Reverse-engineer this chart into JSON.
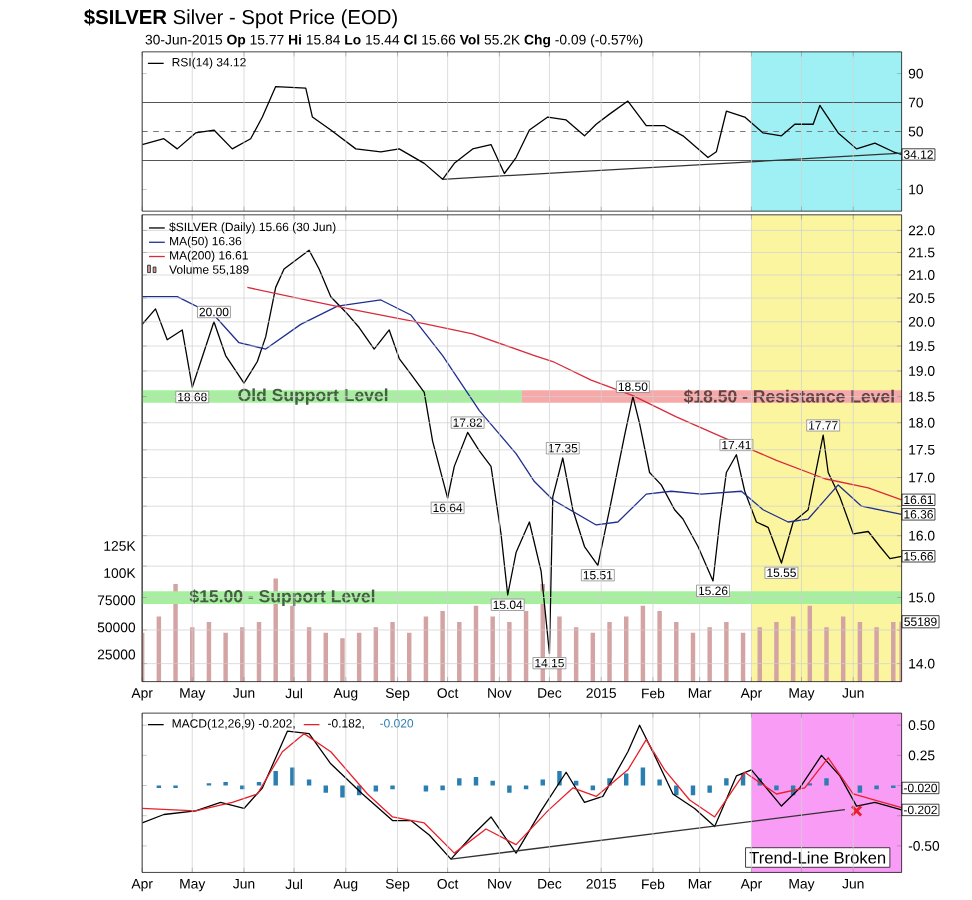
{
  "chart_data": [
    {
      "type": "line",
      "title": "**$SILVER** Silver - Spot Price (EOD)",
      "subtitle": "30-Jun-2015   **Op** 15.77 **Hi** 15.84 **Lo** 15.44 **Cl** 15.66 **Vol** 55.2K **Chg** -0.09 (-0.57%)",
      "xlim": [
        "2014-04-01",
        "2015-06-30"
      ],
      "ylim": [
        -5,
        105
      ],
      "xticks": [
        {
          "value": "2014-04-01",
          "label": null
        },
        {
          "value": "2014-05-01",
          "label": null
        },
        {
          "value": "2014-06-01",
          "label": null
        },
        {
          "value": "2014-07-01",
          "label": null
        },
        {
          "value": "2014-08-01",
          "label": null
        },
        {
          "value": "2014-09-01",
          "label": null
        },
        {
          "value": "2014-10-01",
          "label": null
        },
        {
          "value": "2014-11-01",
          "label": null
        },
        {
          "value": "2014-12-01",
          "label": null
        },
        {
          "value": "2015-01-01",
          "label": null
        },
        {
          "value": "2015-02-01",
          "label": null
        },
        {
          "value": "2015-03-01",
          "label": null
        },
        {
          "value": "2015-04-01",
          "label": null
        },
        {
          "value": "2015-05-01",
          "label": null
        },
        {
          "value": "2015-06-01",
          "label": null
        }
      ],
      "yticks": [
        10,
        {
          "value": 30,
          "label": null
        },
        50,
        70,
        90
      ],
      "tick_labels": "y",
      "grid": "x",
      "legend": "top left",
      "marker": "none",
      "ref_lines": [
        {
          "axis": "y",
          "value": 70,
          "color": "#555555",
          "line_style": "solid"
        },
        {
          "axis": "y",
          "value": 50,
          "color": "#777777",
          "line_style": "dashed"
        },
        {
          "axis": "y",
          "value": 30,
          "color": "#555555",
          "line_style": "solid"
        }
      ],
      "bands": [
        {
          "axis": "x",
          "from": "2015-04-01",
          "to": "2015-06-30",
          "color": "#9ff0f5"
        }
      ],
      "annotations": [
        {
          "text": "34.12",
          "x": "2015-06-30",
          "y": 34.12
        }
      ],
      "series": [
        {
          "name": "RSI(14) 34.12",
          "color": "#000000",
          "x": [
            "2014-04-01",
            "2014-04-14",
            "2014-04-22",
            "2014-05-03",
            "2014-05-14",
            "2014-05-25",
            "2014-06-05",
            "2014-06-12",
            "2014-06-20",
            "2014-07-08",
            "2014-07-12",
            "2014-07-23",
            "2014-08-07",
            "2014-08-22",
            "2014-09-02",
            "2014-09-17",
            "2014-09-28",
            "2014-10-05",
            "2014-10-16",
            "2014-10-27",
            "2014-11-04",
            "2014-11-11",
            "2014-11-19",
            "2014-11-30",
            "2014-12-11",
            "2014-12-22",
            "2014-12-29",
            "2015-01-06",
            "2015-01-17",
            "2015-01-28",
            "2015-02-08",
            "2015-02-19",
            "2015-03-06",
            "2015-03-11",
            "2015-03-17",
            "2015-03-28",
            "2015-04-08",
            "2015-04-19",
            "2015-04-27",
            "2015-05-08",
            "2015-05-12",
            "2015-05-23",
            "2015-06-03",
            "2015-06-14",
            "2015-06-25",
            "2015-06-30"
          ],
          "values": [
            41,
            45,
            38,
            49,
            51,
            38,
            45,
            60,
            81,
            80,
            60,
            51,
            38,
            36,
            38,
            28,
            17,
            28,
            38,
            41,
            21,
            32,
            51,
            60,
            58,
            47,
            55,
            62,
            71,
            54,
            54,
            47,
            32,
            36,
            64,
            60,
            49,
            47,
            55,
            55,
            68,
            49,
            38,
            42,
            36,
            34.12
          ]
        },
        {
          "type": "line",
          "color": "#333333",
          "x": [
            "2014-09-28",
            "2015-06-30"
          ],
          "values": [
            17,
            35
          ]
        }
      ]
    },
    {
      "type": "line",
      "xlim": [
        "2014-04-01",
        "2015-06-30"
      ],
      "ylim": [
        13.74,
        22.36
      ],
      "log": true,
      "xticks": [
        {
          "value": "2014-04-01",
          "label": "Apr"
        },
        {
          "value": "2014-05-01",
          "label": "May"
        },
        {
          "value": "2014-06-01",
          "label": "Jun"
        },
        {
          "value": "2014-07-01",
          "label": "Jul"
        },
        {
          "value": "2014-08-01",
          "label": "Aug"
        },
        {
          "value": "2014-09-01",
          "label": "Sep"
        },
        {
          "value": "2014-10-01",
          "label": "Oct"
        },
        {
          "value": "2014-11-01",
          "label": "Nov"
        },
        {
          "value": "2014-12-01",
          "label": "Dec"
        },
        {
          "value": "2015-01-01",
          "label": "2015"
        },
        {
          "value": "2015-02-01",
          "label": "Feb"
        },
        {
          "value": "2015-03-01",
          "label": "Mar"
        },
        {
          "value": "2015-04-01",
          "label": "Apr"
        },
        {
          "value": "2015-05-01",
          "label": "May"
        },
        {
          "value": "2015-06-01",
          "label": "Jun"
        }
      ],
      "yticks": [
        {
          "value": 14,
          "label": "14.0"
        },
        {
          "value": 14.5,
          "label": null
        },
        {
          "value": 15,
          "label": "15.0"
        },
        {
          "value": 15.5,
          "label": null
        },
        {
          "value": 16,
          "label": "16.0"
        },
        {
          "value": 16.5,
          "label": null
        },
        {
          "value": 17,
          "label": "17.0"
        },
        {
          "value": 17.5,
          "label": "17.5"
        },
        {
          "value": 18,
          "label": "18.0"
        },
        {
          "value": 18.5,
          "label": "18.5"
        },
        {
          "value": 19,
          "label": "19.0"
        },
        {
          "value": 19.5,
          "label": "19.5"
        },
        {
          "value": 20,
          "label": "20.0"
        },
        {
          "value": 20.5,
          "label": "20.5"
        },
        {
          "value": 21,
          "label": "21.0"
        },
        {
          "value": 21.5,
          "label": "21.5"
        },
        {
          "value": 22,
          "label": "22.0"
        }
      ],
      "y2lim": [
        0,
        430000
      ],
      "y2ticks": [
        25000,
        50000,
        75000,
        {
          "value": 100000,
          "label": "100K"
        },
        {
          "value": 125000,
          "label": "125K"
        }
      ],
      "grid": true,
      "legend": "top left",
      "marker": "none",
      "bands": [
        {
          "axis": "x",
          "from": "2015-04-01",
          "to": "2015-06-30",
          "color": "#fbf5a0"
        },
        {
          "axis": "y",
          "from": 14.9,
          "to": 15.1,
          "label": "$15.00 - Support Level",
          "color": "#a6ef9e"
        },
        {
          "axis": "y",
          "from": 18.38,
          "to": 18.62,
          "label": "Old Support Level",
          "color": "#a6ef9e"
        },
        {
          "axis": "y",
          "from": 18.38,
          "to": 18.62,
          "label": "$18.50 - Resistance Level",
          "color": "#f7a8a8"
        }
      ],
      "annotations": [
        {
          "text": "18.68",
          "x": "2014-05-01",
          "y": 18.68
        },
        {
          "text": "20.00",
          "x": "2014-05-14",
          "y": 20.0
        },
        {
          "text": "16.64",
          "x": "2014-10-01",
          "y": 16.64
        },
        {
          "text": "17.82",
          "x": "2014-10-13",
          "y": 17.82
        },
        {
          "text": "15.04",
          "x": "2014-11-06",
          "y": 15.04
        },
        {
          "text": "14.15",
          "x": "2014-12-01",
          "y": 14.15
        },
        {
          "text": "17.35",
          "x": "2014-12-09",
          "y": 17.35
        },
        {
          "text": "15.51",
          "x": "2014-12-30",
          "y": 15.51
        },
        {
          "text": "18.50",
          "x": "2015-01-20",
          "y": 18.5
        },
        {
          "text": "15.26",
          "x": "2015-03-09",
          "y": 15.26
        },
        {
          "text": "17.41",
          "x": "2015-03-23",
          "y": 17.41
        },
        {
          "text": "15.55",
          "x": "2015-04-19",
          "y": 15.55
        },
        {
          "text": "17.77",
          "x": "2015-05-14",
          "y": 17.77
        },
        {
          "text": "16.61",
          "x": "2015-06-30",
          "y": 16.61
        },
        {
          "text": "16.36",
          "x": "2015-06-30",
          "y": 16.36
        },
        {
          "text": "15.66",
          "x": "2015-06-30",
          "y": 15.66
        }
      ],
      "series": [
        {
          "name": "$SILVER (Daily) 15.66 (30 Jun)",
          "color": "#000000",
          "x": [
            "2014-04-01",
            "2014-04-09",
            "2014-04-16",
            "2014-04-25",
            "2014-05-01",
            "2014-05-14",
            "2014-05-21",
            "2014-06-01",
            "2014-06-09",
            "2014-06-14",
            "2014-06-20",
            "2014-06-25",
            "2014-07-10",
            "2014-07-16",
            "2014-07-23",
            "2014-08-01",
            "2014-08-09",
            "2014-08-18",
            "2014-08-27",
            "2014-09-02",
            "2014-09-09",
            "2014-09-17",
            "2014-09-22",
            "2014-10-01",
            "2014-10-05",
            "2014-10-13",
            "2014-10-20",
            "2014-10-27",
            "2014-11-02",
            "2014-11-06",
            "2014-11-11",
            "2014-11-19",
            "2014-11-26",
            "2014-12-01",
            "2014-12-03",
            "2014-12-09",
            "2014-12-15",
            "2014-12-22",
            "2014-12-30",
            "2015-01-06",
            "2015-01-15",
            "2015-01-20",
            "2015-01-24",
            "2015-01-30",
            "2015-02-06",
            "2015-02-14",
            "2015-02-19",
            "2015-02-28",
            "2015-03-09",
            "2015-03-13",
            "2015-03-17",
            "2015-03-23",
            "2015-03-28",
            "2015-04-04",
            "2015-04-11",
            "2015-04-19",
            "2015-04-26",
            "2015-05-05",
            "2015-05-14",
            "2015-05-17",
            "2015-05-24",
            "2015-06-01",
            "2015-06-10",
            "2015-06-17",
            "2015-06-23",
            "2015-06-30"
          ],
          "values": [
            19.95,
            20.27,
            19.63,
            19.83,
            18.68,
            20.0,
            19.31,
            18.76,
            19.19,
            19.69,
            20.73,
            21.13,
            21.55,
            21.13,
            20.53,
            20.2,
            19.88,
            19.44,
            19.83,
            19.25,
            18.94,
            18.58,
            17.66,
            16.64,
            17.2,
            17.82,
            17.48,
            17.2,
            16.03,
            15.04,
            15.72,
            16.23,
            15.42,
            14.15,
            16.66,
            17.35,
            16.44,
            15.82,
            15.51,
            16.44,
            17.76,
            18.5,
            17.99,
            17.09,
            16.87,
            16.44,
            16.28,
            15.82,
            15.26,
            16.23,
            17.09,
            17.41,
            16.76,
            16.23,
            16.14,
            15.55,
            16.23,
            16.44,
            17.77,
            17.09,
            16.66,
            16.03,
            16.07,
            15.82,
            15.62,
            15.66
          ]
        },
        {
          "name": "MA(50) 16.36",
          "color": "#1f2f8f",
          "x": [
            "2014-04-01",
            "2014-04-22",
            "2014-05-14",
            "2014-05-29",
            "2014-06-14",
            "2014-07-05",
            "2014-07-27",
            "2014-08-22",
            "2014-09-09",
            "2014-09-28",
            "2014-10-20",
            "2014-11-11",
            "2014-11-22",
            "2014-12-03",
            "2014-12-29",
            "2015-01-11",
            "2015-01-28",
            "2015-02-12",
            "2015-03-02",
            "2015-03-26",
            "2015-04-08",
            "2015-04-23",
            "2015-05-05",
            "2015-05-23",
            "2015-06-06",
            "2015-06-30"
          ],
          "values": [
            20.53,
            20.53,
            20.14,
            19.57,
            19.44,
            19.95,
            20.33,
            20.46,
            20.14,
            19.31,
            18.23,
            17.43,
            16.93,
            16.61,
            16.18,
            16.23,
            16.71,
            16.76,
            16.71,
            16.76,
            16.44,
            16.23,
            16.28,
            16.87,
            16.5,
            16.36
          ]
        },
        {
          "name": "MA(200) 16.61",
          "color": "#d92b3a",
          "x": [
            "2014-06-03",
            "2014-07-08",
            "2014-08-03",
            "2014-09-09",
            "2014-10-16",
            "2014-11-22",
            "2014-12-03",
            "2014-12-26",
            "2015-01-20",
            "2015-02-15",
            "2015-03-17",
            "2015-04-16",
            "2015-05-15",
            "2015-06-10",
            "2015-06-30"
          ],
          "values": [
            20.73,
            20.46,
            20.27,
            20.02,
            19.75,
            19.31,
            19.19,
            18.82,
            18.52,
            18.11,
            17.7,
            17.31,
            16.98,
            16.82,
            16.61
          ]
        },
        {
          "name": "Volume 55,189",
          "type": "bar",
          "axis": "y2",
          "color": "#d4a3a3",
          "x": [
            "2014-04-01",
            "2014-04-11",
            "2014-04-21",
            "2014-05-01",
            "2014-05-11",
            "2014-05-21",
            "2014-05-31",
            "2014-06-10",
            "2014-06-20",
            "2014-06-30",
            "2014-07-10",
            "2014-07-20",
            "2014-07-30",
            "2014-08-09",
            "2014-08-19",
            "2014-08-29",
            "2014-09-08",
            "2014-09-18",
            "2014-09-28",
            "2014-10-08",
            "2014-10-18",
            "2014-10-28",
            "2014-11-07",
            "2014-11-17",
            "2014-11-27",
            "2014-12-07",
            "2014-12-17",
            "2014-12-27",
            "2015-01-06",
            "2015-01-16",
            "2015-01-26",
            "2015-02-05",
            "2015-02-15",
            "2015-02-25",
            "2015-03-07",
            "2015-03-17",
            "2015-03-27",
            "2015-04-06",
            "2015-04-16",
            "2015-04-26",
            "2015-05-06",
            "2015-05-16",
            "2015-05-26",
            "2015-06-05",
            "2015-06-15",
            "2015-06-25",
            "2015-06-30"
          ],
          "values": [
            45000,
            60000,
            90000,
            50000,
            55000,
            45000,
            50000,
            55000,
            95000,
            70000,
            50000,
            45000,
            40000,
            45000,
            50000,
            55000,
            45000,
            60000,
            65000,
            55000,
            70000,
            60000,
            55000,
            65000,
            90000,
            60000,
            50000,
            45000,
            55000,
            60000,
            70000,
            65000,
            55000,
            45000,
            50000,
            55000,
            45000,
            50000,
            55000,
            60000,
            70000,
            50000,
            60000,
            55000,
            50000,
            55000,
            55189
          ],
          "value_labels": [
            null,
            null,
            null,
            null,
            null,
            null,
            null,
            null,
            null,
            null,
            null,
            null,
            null,
            null,
            null,
            null,
            null,
            null,
            null,
            null,
            null,
            null,
            null,
            null,
            null,
            null,
            null,
            null,
            null,
            null,
            null,
            null,
            null,
            null,
            null,
            null,
            null,
            null,
            null,
            null,
            null,
            null,
            null,
            null,
            null,
            null,
            "55189"
          ]
        }
      ]
    },
    {
      "type": "line",
      "xlim": [
        "2014-04-01",
        "2015-06-30"
      ],
      "ylim": [
        -0.72,
        0.6
      ],
      "xticks": [
        {
          "value": "2014-04-01",
          "label": "Apr"
        },
        {
          "value": "2014-05-01",
          "label": "May"
        },
        {
          "value": "2014-06-01",
          "label": "Jun"
        },
        {
          "value": "2014-07-01",
          "label": "Jul"
        },
        {
          "value": "2014-08-01",
          "label": "Aug"
        },
        {
          "value": "2014-09-01",
          "label": "Sep"
        },
        {
          "value": "2014-10-01",
          "label": "Oct"
        },
        {
          "value": "2014-11-01",
          "label": "Nov"
        },
        {
          "value": "2014-12-01",
          "label": "Dec"
        },
        {
          "value": "2015-01-01",
          "label": "2015"
        },
        {
          "value": "2015-02-01",
          "label": "Feb"
        },
        {
          "value": "2015-03-01",
          "label": "Mar"
        },
        {
          "value": "2015-04-01",
          "label": "Apr"
        },
        {
          "value": "2015-05-01",
          "label": "May"
        },
        {
          "value": "2015-06-01",
          "label": "Jun"
        }
      ],
      "yticks": [
        {
          "value": -0.5,
          "label": "-0.50"
        },
        {
          "value": -0.25,
          "label": null
        },
        {
          "value": 0,
          "label": null
        },
        {
          "value": 0.25,
          "label": "0.25"
        },
        {
          "value": 0.5,
          "label": "0.50"
        }
      ],
      "grid": "x",
      "legend": "top left",
      "marker": "none",
      "bands": [
        {
          "axis": "x",
          "from": "2015-04-01",
          "to": "2015-06-30",
          "color": "#f99cf5"
        }
      ],
      "annotations": [
        "Trend-Line Broken",
        {
          "text": "-0.020",
          "x": "2015-06-30",
          "y": -0.02
        },
        {
          "text": "-0.202",
          "x": "2015-06-30",
          "y": -0.202
        }
      ],
      "series": [
        {
          "name": "MACD(12,26,9) -0.202,",
          "color": "#000000",
          "x": [
            "2014-04-01",
            "2014-04-14",
            "2014-05-03",
            "2014-05-18",
            "2014-06-01",
            "2014-06-12",
            "2014-06-20",
            "2014-06-27",
            "2014-07-10",
            "2014-07-23",
            "2014-08-11",
            "2014-08-29",
            "2014-09-09",
            "2014-09-20",
            "2014-10-03",
            "2014-10-16",
            "2014-10-27",
            "2014-11-11",
            "2014-11-26",
            "2014-12-11",
            "2014-12-22",
            "2015-01-02",
            "2015-01-17",
            "2015-01-24",
            "2015-02-02",
            "2015-02-13",
            "2015-02-26",
            "2015-03-10",
            "2015-03-23",
            "2015-04-01",
            "2015-04-19",
            "2015-04-30",
            "2015-05-13",
            "2015-05-24",
            "2015-06-03",
            "2015-06-14",
            "2015-06-30"
          ],
          "values": [
            -0.31,
            -0.24,
            -0.21,
            -0.14,
            -0.19,
            -0.02,
            0.23,
            0.45,
            0.43,
            0.18,
            -0.07,
            -0.29,
            -0.29,
            -0.41,
            -0.61,
            -0.41,
            -0.26,
            -0.56,
            -0.21,
            0.11,
            -0.14,
            -0.09,
            0.28,
            0.5,
            0.25,
            -0.07,
            -0.19,
            -0.34,
            0.08,
            0.13,
            -0.17,
            -0.02,
            0.25,
            0.08,
            -0.17,
            -0.14,
            -0.202
          ]
        },
        {
          "name": "-0.182,",
          "color": "#e8202a",
          "x": [
            "2014-04-01",
            "2014-05-03",
            "2014-05-25",
            "2014-06-09",
            "2014-06-24",
            "2014-07-07",
            "2014-07-23",
            "2014-08-14",
            "2014-08-29",
            "2014-09-17",
            "2014-10-05",
            "2014-10-24",
            "2014-11-11",
            "2014-11-30",
            "2014-12-15",
            "2014-12-29",
            "2015-01-17",
            "2015-01-28",
            "2015-02-08",
            "2015-02-23",
            "2015-03-10",
            "2015-03-28",
            "2015-04-16",
            "2015-05-03",
            "2015-05-17",
            "2015-06-01",
            "2015-06-14",
            "2015-06-30"
          ],
          "values": [
            -0.19,
            -0.21,
            -0.14,
            -0.07,
            0.28,
            0.43,
            0.28,
            -0.07,
            -0.26,
            -0.31,
            -0.56,
            -0.36,
            -0.49,
            -0.21,
            -0.02,
            -0.09,
            0.13,
            0.38,
            0.13,
            -0.12,
            -0.26,
            0.11,
            -0.07,
            -0.02,
            0.23,
            -0.07,
            -0.12,
            -0.182
          ]
        },
        {
          "name": "-0.020",
          "type": "bar",
          "color": "#2a7fb0",
          "x": [
            "2014-04-01",
            "2014-04-11",
            "2014-04-21",
            "2014-05-01",
            "2014-05-11",
            "2014-05-21",
            "2014-05-31",
            "2014-06-10",
            "2014-06-20",
            "2014-06-30",
            "2014-07-10",
            "2014-07-20",
            "2014-07-30",
            "2014-08-09",
            "2014-08-19",
            "2014-08-29",
            "2014-09-08",
            "2014-09-18",
            "2014-09-28",
            "2014-10-08",
            "2014-10-18",
            "2014-10-28",
            "2014-11-07",
            "2014-11-17",
            "2014-11-27",
            "2014-12-07",
            "2014-12-17",
            "2014-12-27",
            "2015-01-06",
            "2015-01-16",
            "2015-01-26",
            "2015-02-05",
            "2015-02-15",
            "2015-02-25",
            "2015-03-07",
            "2015-03-17",
            "2015-03-27",
            "2015-04-06",
            "2015-04-16",
            "2015-04-26",
            "2015-05-06",
            "2015-05-16",
            "2015-05-26",
            "2015-06-05",
            "2015-06-15",
            "2015-06-25"
          ],
          "values": [
            0.0,
            -0.02,
            -0.02,
            0.0,
            0.02,
            0.03,
            -0.03,
            0.03,
            0.12,
            0.15,
            0.05,
            -0.06,
            -0.1,
            -0.08,
            -0.05,
            -0.03,
            0.0,
            -0.05,
            -0.04,
            0.06,
            0.07,
            0.04,
            -0.06,
            -0.03,
            0.05,
            0.12,
            0.04,
            -0.04,
            0.06,
            0.1,
            0.15,
            0.05,
            -0.08,
            -0.08,
            -0.06,
            0.06,
            0.1,
            0.06,
            -0.04,
            -0.08,
            0.02,
            0.06,
            0.0,
            -0.06,
            -0.03,
            -0.02
          ]
        },
        {
          "type": "line",
          "color": "#333333",
          "x": [
            "2014-10-03",
            "2015-05-27"
          ],
          "values": [
            -0.61,
            -0.2
          ]
        },
        {
          "type": "scatter",
          "marker": "cross",
          "color": "#e8202a",
          "x": [
            "2015-06-03"
          ],
          "values": [
            -0.21
          ]
        }
      ]
    }
  ]
}
